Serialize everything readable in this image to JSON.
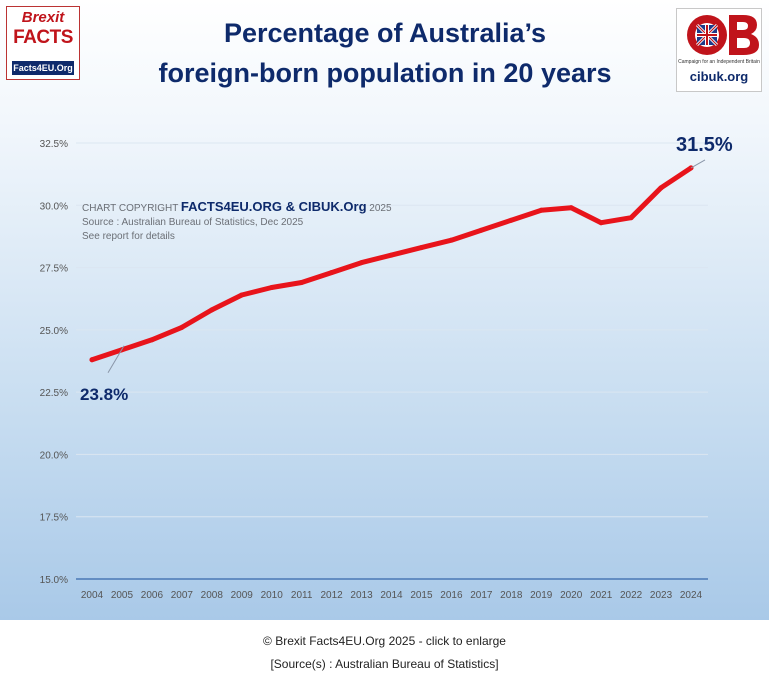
{
  "header": {
    "title_line1": "Percentage of Australia’s",
    "title_line2": "foreign-born population in 20 years"
  },
  "logos": {
    "brexit_line1": "Brexit",
    "brexit_line2": "FACTS",
    "brexit_line3": "Facts4EU.Org",
    "cibuk_tagline": "Campaign for an Independent Britain",
    "cibuk_url": "cibuk.org"
  },
  "note": {
    "prefix": "CHART COPYRIGHT ",
    "brand": "FACTS4EU.ORG & CIBUK.Org",
    "year": " 2025",
    "source": "Source : Australian Bureau of Statistics, Dec 2025",
    "details": "See report for details"
  },
  "chart_data": {
    "type": "line",
    "title": "Percentage of Australia’s foreign-born population in 20 years",
    "xlabel": "",
    "ylabel": "",
    "categories": [
      "2004",
      "2005",
      "2006",
      "2007",
      "2008",
      "2009",
      "2010",
      "2011",
      "2012",
      "2013",
      "2014",
      "2015",
      "2016",
      "2017",
      "2018",
      "2019",
      "2020",
      "2021",
      "2022",
      "2023",
      "2024"
    ],
    "series": [
      {
        "name": "Foreign-born population (%)",
        "color": "#e8141b",
        "values": [
          23.8,
          24.2,
          24.6,
          25.1,
          25.8,
          26.4,
          26.7,
          26.9,
          27.3,
          27.7,
          28.0,
          28.3,
          28.6,
          29.0,
          29.4,
          29.8,
          29.9,
          29.3,
          29.5,
          30.7,
          31.5
        ]
      }
    ],
    "ylim": [
      15.0,
      32.5
    ],
    "y_ticks": [
      "15.0%",
      "17.5%",
      "20.0%",
      "22.5%",
      "25.0%",
      "27.5%",
      "30.0%",
      "32.5%"
    ],
    "y_tick_values": [
      15.0,
      17.5,
      20.0,
      22.5,
      25.0,
      27.5,
      30.0,
      32.5
    ],
    "grid": true,
    "annotations": [
      {
        "label": "23.8%",
        "category": "2004",
        "value": 23.8
      },
      {
        "label": "31.5%",
        "category": "2024",
        "value": 31.5
      }
    ]
  },
  "footer": {
    "credit": "© Brexit Facts4EU.Org 2025 - click to enlarge",
    "source": "[Source(s) : Australian Bureau of Statistics]"
  }
}
